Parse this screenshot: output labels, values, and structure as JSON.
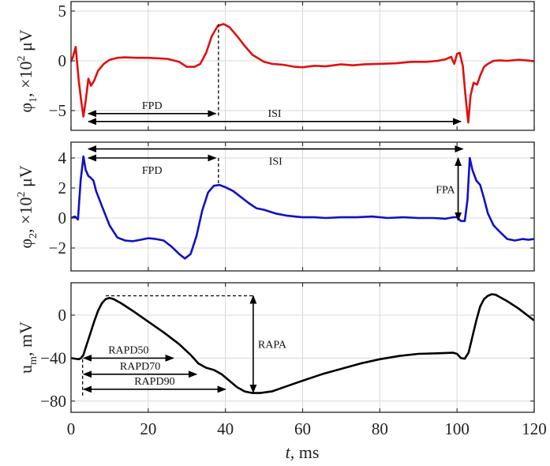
{
  "chart_data": [
    {
      "type": "line",
      "panel": "phi1",
      "ylabel": "φ1, ×10² μV",
      "ylabel_parts": {
        "sym": "φ",
        "sub": "1",
        "mid": ", ×10",
        "sup": "2",
        "unit": " μV"
      },
      "xlim": [
        0,
        120
      ],
      "ylim": [
        -6.7,
        6
      ],
      "yticks": [
        5,
        0,
        -5
      ],
      "ytick_labels": [
        "5",
        "0",
        "−5"
      ],
      "xticks": [
        0,
        20,
        40,
        60,
        80,
        100,
        120
      ],
      "grid": true,
      "series": [
        {
          "name": "φ1",
          "color": "#e01010",
          "x": [
            0,
            0.5,
            1.2,
            2.0,
            2.7,
            3.2,
            3.8,
            4.5,
            5.2,
            6.0,
            7.0,
            8.5,
            10,
            12,
            14,
            17,
            20,
            25,
            28,
            30,
            32,
            33.5,
            35,
            36.5,
            38,
            39.5,
            41,
            43,
            45,
            47,
            50,
            52,
            55,
            58,
            60,
            63,
            66,
            70,
            73,
            76,
            80,
            84,
            88,
            92,
            95,
            97,
            98.5,
            99.3,
            100.0,
            100.7,
            101.5,
            102.2,
            102.9,
            103.5,
            104.3,
            105.2,
            106.0,
            107.0,
            108.0,
            109.5,
            111,
            113,
            116,
            118,
            120
          ],
          "y": [
            -0.1,
            0.4,
            1.4,
            -2.0,
            -4.2,
            -5.6,
            -4.0,
            -1.8,
            -2.5,
            -2.0,
            -1.0,
            -0.3,
            0.1,
            0.3,
            0.35,
            0.3,
            0.3,
            0.2,
            -0.1,
            -0.6,
            -0.6,
            -0.3,
            0.8,
            2.5,
            3.5,
            3.7,
            3.4,
            2.5,
            1.5,
            0.6,
            -0.1,
            -0.3,
            -0.4,
            -0.6,
            -0.65,
            -0.5,
            -0.55,
            -0.35,
            -0.45,
            -0.35,
            -0.3,
            -0.25,
            -0.1,
            -0.1,
            0.0,
            0.15,
            0.4,
            -0.3,
            0.7,
            0.8,
            -0.5,
            -3.5,
            -6.2,
            -3.5,
            -2.2,
            -2.4,
            -1.5,
            -0.6,
            -0.3,
            0.0,
            0.05,
            0.0,
            0.1,
            0.05,
            -0.05
          ]
        }
      ],
      "annotations": [
        {
          "label": "FPD",
          "type": "double-arrow",
          "from": 4.5,
          "to": 37.5,
          "y": -5.3
        },
        {
          "label": "ISI",
          "type": "double-arrow",
          "from": 4.5,
          "to": 101,
          "y": -6.1
        },
        {
          "label": "",
          "type": "dashed-vline",
          "x": 38.2,
          "y_from": 3.7,
          "y_to": -5.6
        }
      ]
    },
    {
      "type": "line",
      "panel": "phi2",
      "ylabel": "φ2, ×10² μV",
      "ylabel_parts": {
        "sym": "φ",
        "sub": "2",
        "mid": ", ×10",
        "sup": "2",
        "unit": " μV"
      },
      "xlim": [
        0,
        120
      ],
      "ylim": [
        -3.5,
        5
      ],
      "yticks": [
        4,
        2,
        0,
        -2
      ],
      "ytick_labels": [
        "4",
        "2",
        "0",
        "−2"
      ],
      "xticks": [
        0,
        20,
        40,
        60,
        80,
        100,
        120
      ],
      "grid": true,
      "series": [
        {
          "name": "φ2",
          "color": "#1010c8",
          "x": [
            0,
            1,
            1.8,
            2.5,
            3.2,
            3.8,
            4.5,
            5.0,
            5.8,
            6.5,
            8,
            10,
            12,
            14,
            16,
            18,
            20,
            22,
            24,
            26,
            28,
            29.5,
            31,
            32.5,
            34,
            35.5,
            37,
            38.5,
            40,
            42,
            44,
            46,
            48,
            50,
            53,
            56,
            60,
            63,
            66,
            70,
            74,
            78,
            82,
            86,
            90,
            94,
            97,
            99,
            100,
            101,
            102,
            102.7,
            103.3,
            104,
            105,
            106,
            107,
            108,
            109.5,
            111,
            113,
            115,
            117,
            118.5,
            120
          ],
          "y": [
            0.0,
            0.1,
            -0.1,
            2.5,
            4.1,
            3.2,
            2.8,
            2.7,
            2.5,
            1.8,
            0.8,
            -0.5,
            -1.3,
            -1.5,
            -1.55,
            -1.45,
            -1.35,
            -1.4,
            -1.5,
            -1.9,
            -2.4,
            -2.7,
            -2.4,
            -1.2,
            0.5,
            1.7,
            2.15,
            2.2,
            2.05,
            1.8,
            1.4,
            1.0,
            0.65,
            0.55,
            0.3,
            0.15,
            0.05,
            0.05,
            0.0,
            0.05,
            0.05,
            0.1,
            0.0,
            0.05,
            0.0,
            0.0,
            -0.05,
            0.05,
            0.05,
            -0.2,
            -0.2,
            1.2,
            4.0,
            3.2,
            2.5,
            2.2,
            1.3,
            0.3,
            -0.5,
            -0.9,
            -1.4,
            -1.5,
            -1.4,
            -1.45,
            -1.4
          ]
        }
      ],
      "annotations": [
        {
          "label": "ISI",
          "type": "double-arrow",
          "from": 4.5,
          "to": 101.5,
          "y": 4.6
        },
        {
          "label": "FPD",
          "type": "double-arrow",
          "from": 4.5,
          "to": 37.5,
          "y": 4.0
        },
        {
          "label": "",
          "type": "dashed-vline",
          "x": 38.2,
          "y_from": 4.0,
          "y_to": 2.2
        },
        {
          "label": "FPA",
          "type": "double-arrow-vertical",
          "x": 100.3,
          "from": 4.0,
          "to": -0.15
        }
      ]
    },
    {
      "type": "line",
      "panel": "um",
      "ylabel": "um, mV",
      "ylabel_parts": {
        "sym": "u",
        "sub": "m",
        "mid": ", mV",
        "sup": "",
        "unit": ""
      },
      "xlabel": "t, ms",
      "xlabel_parts": {
        "var": "t",
        "unit": ", ms"
      },
      "xlim": [
        0,
        120
      ],
      "ylim": [
        -90,
        30
      ],
      "yticks": [
        0,
        -40,
        -80
      ],
      "ytick_labels": [
        "0",
        "−40",
        "−80"
      ],
      "xticks": [
        0,
        20,
        40,
        60,
        80,
        100,
        120
      ],
      "xtick_labels": [
        "0",
        "20",
        "40",
        "60",
        "80",
        "100",
        "120"
      ],
      "grid": true,
      "series": [
        {
          "name": "um",
          "color": "#000000",
          "x": [
            0,
            1,
            2,
            2.6,
            3.2,
            4,
            5,
            6,
            7,
            8,
            9,
            10,
            11,
            13,
            16,
            20,
            24,
            28,
            31,
            33,
            35,
            37,
            39,
            41,
            43,
            45,
            47,
            49,
            52,
            56,
            60,
            65,
            70,
            75,
            80,
            85,
            90,
            95,
            99,
            100,
            101,
            102,
            103,
            104,
            105,
            106,
            107,
            108,
            109,
            110,
            111,
            113,
            116,
            120
          ],
          "y": [
            -40,
            -40.5,
            -41,
            -40,
            -37,
            -28,
            -17,
            -6,
            4,
            11,
            15,
            16,
            15,
            11,
            4,
            -6,
            -16,
            -27,
            -37,
            -45,
            -49,
            -51,
            -55,
            -61,
            -67,
            -71,
            -72.5,
            -72.5,
            -71,
            -66,
            -61,
            -55,
            -50,
            -45,
            -41,
            -38,
            -36,
            -35.5,
            -35,
            -36,
            -40,
            -40.5,
            -35,
            -20,
            -5,
            8,
            15,
            18,
            19.5,
            19,
            17,
            13,
            6,
            -5
          ]
        }
      ],
      "annotations": [
        {
          "label": "RAPA",
          "type": "double-arrow-vertical",
          "x": 47.2,
          "from": 18,
          "to": -72
        },
        {
          "label": "",
          "type": "dashed-hline",
          "y": 18,
          "x_from": 9,
          "x_to": 47.2
        },
        {
          "label": "",
          "type": "dashed-vline",
          "x": 3,
          "y_from": -41,
          "y_to": -75
        },
        {
          "label": "RAPD50",
          "type": "double-arrow",
          "from": 3.3,
          "to": 26.5,
          "y": -40
        },
        {
          "label": "RAPD70",
          "type": "double-arrow",
          "from": 3.3,
          "to": 32.5,
          "y": -55
        },
        {
          "label": "RAPD90",
          "type": "double-arrow",
          "from": 3.3,
          "to": 40,
          "y": -69
        }
      ]
    }
  ]
}
